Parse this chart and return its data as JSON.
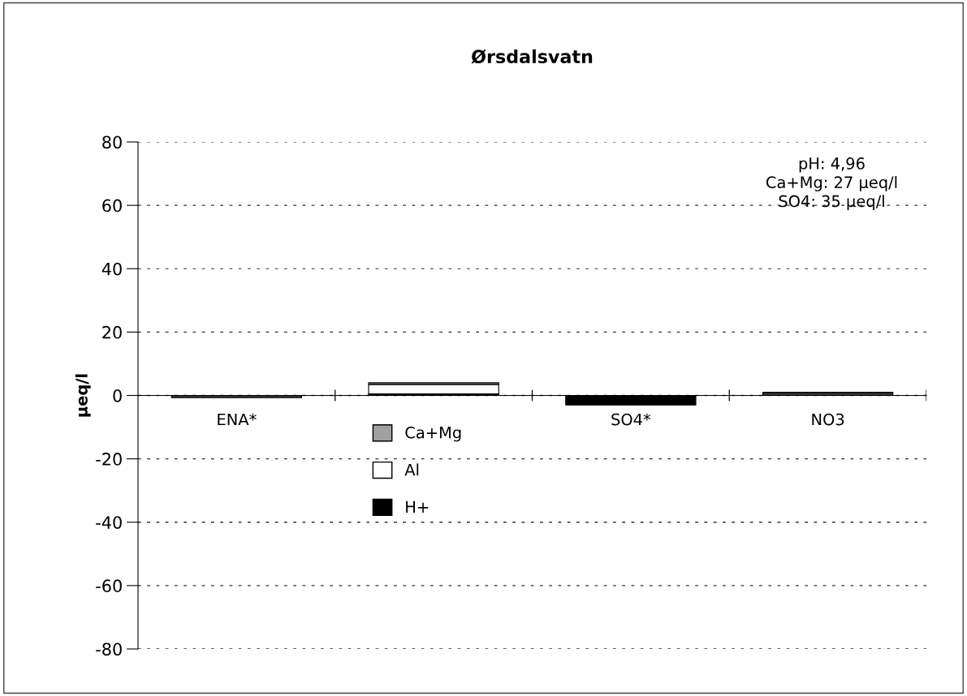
{
  "chart_data": {
    "type": "bar",
    "title": "Ørsdalsvatn",
    "ylabel": "µeq/l",
    "categories": [
      "ENA*",
      null,
      "SO4*",
      "NO3"
    ],
    "stacked": true,
    "series": [
      {
        "name": "H+",
        "color": "#000000",
        "values": [
          null,
          0.5,
          null,
          null
        ]
      },
      {
        "name": "Al",
        "color": "#ffffff",
        "values": [
          null,
          3,
          null,
          null
        ]
      },
      {
        "name": "Ca+Mg",
        "color": "#a0a0a0",
        "values": [
          null,
          0.5,
          null,
          null
        ]
      },
      {
        "colors": [
          "#333333",
          "#000000",
          "#000000",
          "#333333"
        ],
        "values": [
          -0.7,
          null,
          -3,
          1
        ]
      }
    ],
    "ylim": [
      -80,
      80
    ],
    "yticks": [
      -80,
      -60,
      -40,
      -20,
      0,
      20,
      40,
      60,
      80
    ],
    "grid": "y",
    "legend": "bottom left",
    "annotations": [
      "pH: 4,96\nCa+Mg: 27 µeq/l\nSO4: 35 µeq/l"
    ]
  }
}
